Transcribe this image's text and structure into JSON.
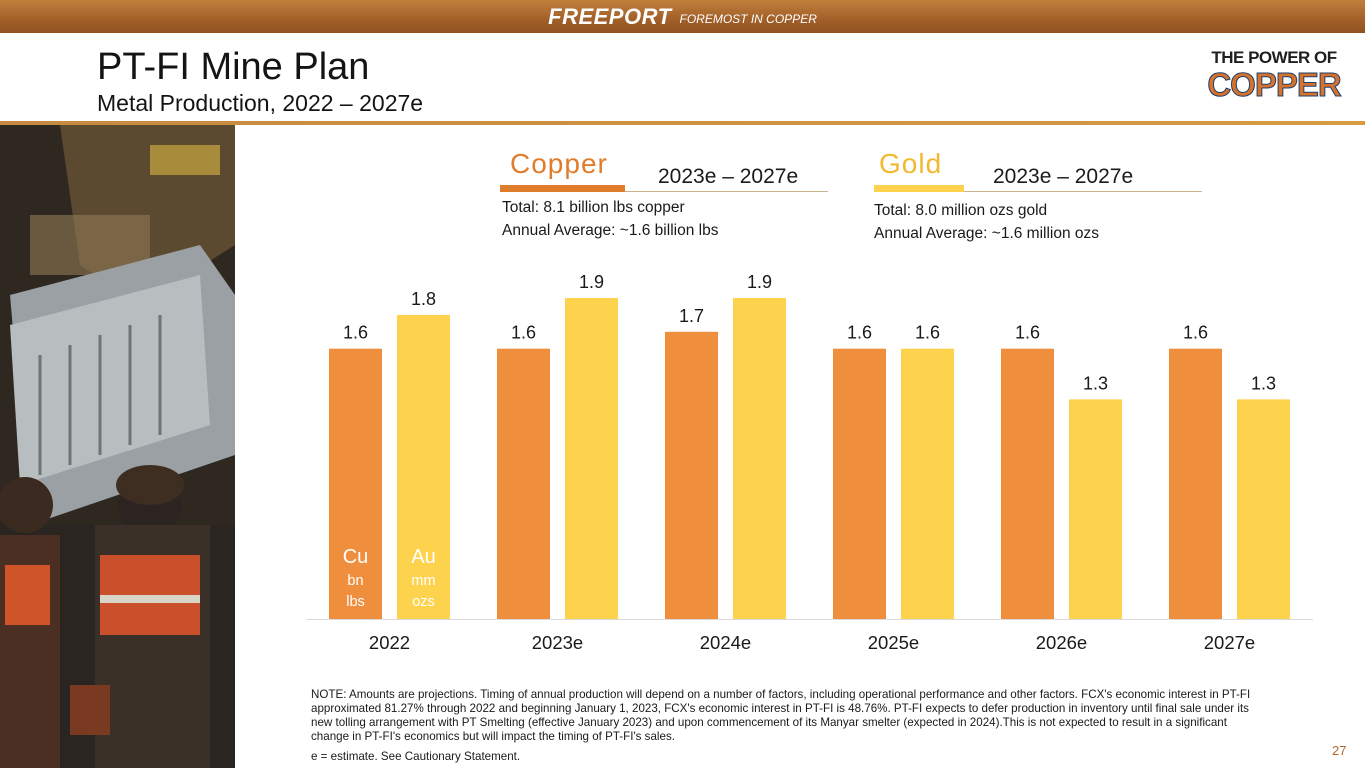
{
  "header": {
    "brand_name": "FREEPORT",
    "brand_tagline": "FOREMOST IN COPPER",
    "title": "PT-FI Mine Plan",
    "subtitle": "Metal Production, 2022 – 2027e"
  },
  "logo": {
    "line1": "THE POWER OF",
    "line2": "COPPER"
  },
  "copper": {
    "label": "Copper",
    "range": "2023e – 2027e",
    "total": "Total: 8.1 billion lbs copper",
    "average": "Annual Average: ~1.6 billion lbs"
  },
  "gold": {
    "label": "Gold",
    "range": "2023e – 2027e",
    "total": "Total: 8.0 million ozs gold",
    "average": "Annual Average: ~1.6 million ozs"
  },
  "colors": {
    "copper": "#ef8f3d",
    "gold": "#fdd24d",
    "copper_title": "#e07d2d",
    "gold_title": "#f2b830",
    "axis": "#d9d9d9"
  },
  "chart_data": {
    "type": "bar",
    "categories": [
      "2022",
      "2023e",
      "2024e",
      "2025e",
      "2026e",
      "2027e"
    ],
    "series": [
      {
        "name": "Cu",
        "unit_line1": "bn",
        "unit_line2": "lbs",
        "values": [
          1.6,
          1.6,
          1.7,
          1.6,
          1.6,
          1.6
        ],
        "labels": [
          "1.6",
          "1.6",
          "1.7",
          "1.6",
          "1.6",
          "1.6"
        ]
      },
      {
        "name": "Au",
        "unit_line1": "mm",
        "unit_line2": "ozs",
        "values": [
          1.8,
          1.9,
          1.9,
          1.6,
          1.3,
          1.3
        ],
        "labels": [
          "1.8",
          "1.9",
          "1.9",
          "1.6",
          "1.3",
          "1.3"
        ]
      }
    ],
    "ylim": [
      0,
      1.9
    ],
    "grid": false,
    "legend": "inside-first-bars"
  },
  "footer": {
    "note": "NOTE: Amounts are projections. Timing of annual production will depend on a number of factors, including operational performance and other factors. FCX's economic interest in PT-FI approximated 81.27% through 2022 and beginning January 1, 2023, FCX's economic interest in PT-FI is 48.76%. PT-FI expects to defer production in inventory until final sale under its new tolling arrangement with PT Smelting (effective January 2023) and upon commencement of its Manyar smelter (expected in 2024).This is not expected to result in a significant change in PT-FI's economics but will impact the timing of PT-FI's sales.",
    "estimate_note": "e = estimate. See Cautionary Statement.",
    "page_number": "27"
  }
}
